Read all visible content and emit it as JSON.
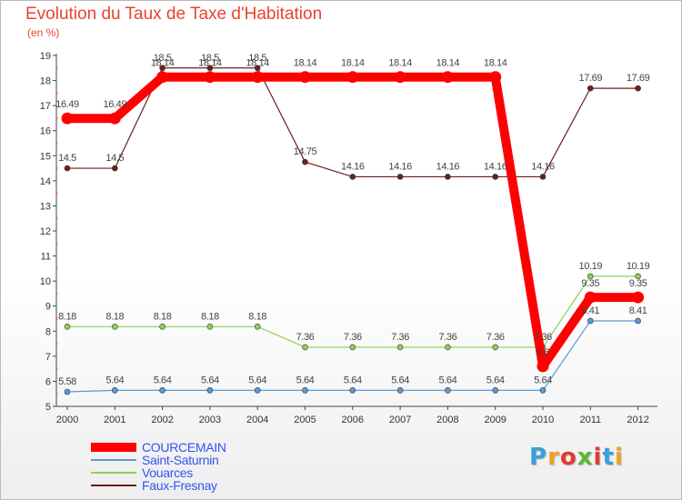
{
  "chart_data": {
    "type": "line",
    "title": "Evolution du Taux de Taxe d'Habitation",
    "subtitle": "(en %)",
    "x": [
      "2000",
      "2001",
      "2002",
      "2003",
      "2004",
      "2005",
      "2006",
      "2007",
      "2008",
      "2009",
      "2010",
      "2011",
      "2012"
    ],
    "ylim": [
      5,
      19
    ],
    "yticks": [
      5,
      6,
      7,
      8,
      9,
      10,
      11,
      12,
      13,
      14,
      15,
      16,
      17,
      18,
      19
    ],
    "grid": false,
    "legend_position": "bottom-left",
    "series": [
      {
        "name": "COURCEMAIN",
        "color": "#ff0000",
        "values": [
          16.49,
          16.49,
          18.14,
          18.14,
          18.14,
          18.14,
          18.14,
          18.14,
          18.14,
          18.14,
          6.6,
          9.35,
          9.35
        ],
        "labels": [
          "16.49",
          "16.49",
          "18.14",
          "18.14",
          "18.14",
          "18.14",
          "18.14",
          "18.14",
          "18.14",
          "18.14",
          "6.6",
          "9.35",
          "9.35"
        ]
      },
      {
        "name": "Saint-Saturnin",
        "color": "#5b9bd5",
        "values": [
          5.58,
          5.64,
          5.64,
          5.64,
          5.64,
          5.64,
          5.64,
          5.64,
          5.64,
          5.64,
          5.64,
          8.41,
          8.41
        ],
        "labels": [
          "5.58",
          "5.64",
          "5.64",
          "5.64",
          "5.64",
          "5.64",
          "5.64",
          "5.64",
          "5.64",
          "5.64",
          "5.64",
          "8.41",
          "8.41"
        ]
      },
      {
        "name": "Vouarces",
        "color": "#8ed05a",
        "values": [
          8.18,
          8.18,
          8.18,
          8.18,
          8.18,
          7.36,
          7.36,
          7.36,
          7.36,
          7.36,
          7.36,
          10.19,
          10.19
        ],
        "labels": [
          "8.18",
          "8.18",
          "8.18",
          "8.18",
          "8.18",
          "7.36",
          "7.36",
          "7.36",
          "7.36",
          "7.36",
          "7.36",
          "10.19",
          "10.19"
        ]
      },
      {
        "name": "Faux-Fresnay",
        "color": "#6e1e1e",
        "values": [
          14.5,
          14.5,
          18.5,
          18.5,
          18.5,
          14.75,
          14.16,
          14.16,
          14.16,
          14.16,
          14.16,
          17.69,
          17.69
        ],
        "labels": [
          "14.5",
          "14.5",
          "18.5",
          "18.5",
          "18.5",
          "14.75",
          "14.16",
          "14.16",
          "14.16",
          "14.16",
          "14.16",
          "17.69",
          "17.69"
        ]
      }
    ]
  },
  "brand": {
    "letters": [
      "P",
      "r",
      "o",
      "x",
      "i",
      "t",
      "i"
    ],
    "colors": [
      "#3aa0d8",
      "#f0a020",
      "#e23b2e",
      "#5cb830",
      "#e23b2e",
      "#3aa0d8",
      "#f0a020"
    ]
  }
}
